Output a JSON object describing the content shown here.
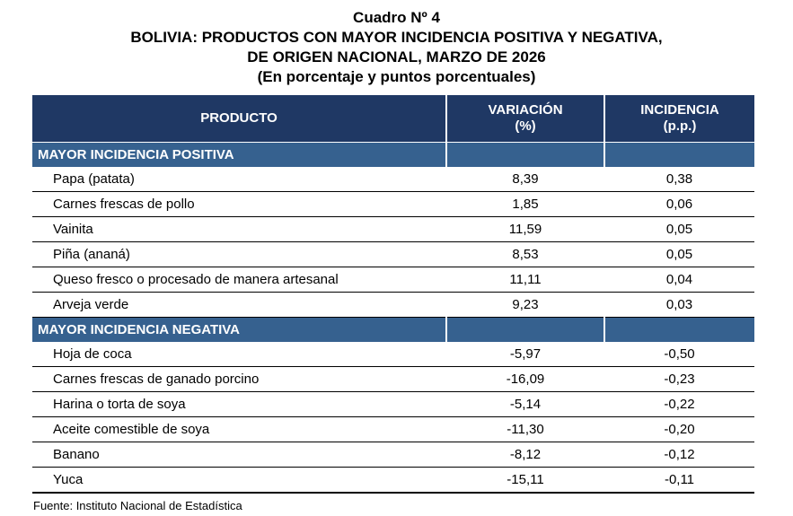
{
  "title": {
    "line1": "Cuadro Nº 4",
    "line2": "BOLIVIA: PRODUCTOS CON MAYOR INCIDENCIA POSITIVA Y NEGATIVA,",
    "line3": "DE ORIGEN NACIONAL, MARZO DE 2026",
    "line4": "(En porcentaje y puntos porcentuales)"
  },
  "table": {
    "columns": [
      {
        "label": "PRODUCTO",
        "sublabel": ""
      },
      {
        "label": "VARIACIÓN",
        "sublabel": "(%)"
      },
      {
        "label": "INCIDENCIA",
        "sublabel": "(p.p.)"
      }
    ],
    "sections": [
      {
        "header": "MAYOR INCIDENCIA POSITIVA",
        "rows": [
          {
            "producto": "Papa (patata)",
            "variacion": "8,39",
            "incidencia": "0,38"
          },
          {
            "producto": "Carnes frescas de pollo",
            "variacion": "1,85",
            "incidencia": "0,06"
          },
          {
            "producto": "Vainita",
            "variacion": "11,59",
            "incidencia": "0,05"
          },
          {
            "producto": "Piña (ananá)",
            "variacion": "8,53",
            "incidencia": "0,05"
          },
          {
            "producto": "Queso fresco o procesado de manera artesanal",
            "variacion": "11,11",
            "incidencia": "0,04"
          },
          {
            "producto": "Arveja verde",
            "variacion": "9,23",
            "incidencia": "0,03"
          }
        ]
      },
      {
        "header": "MAYOR INCIDENCIA NEGATIVA",
        "rows": [
          {
            "producto": "Hoja de coca",
            "variacion": "-5,97",
            "incidencia": "-0,50"
          },
          {
            "producto": "Carnes frescas de ganado porcino",
            "variacion": "-16,09",
            "incidencia": "-0,23"
          },
          {
            "producto": "Harina o torta de soya",
            "variacion": "-5,14",
            "incidencia": "-0,22"
          },
          {
            "producto": "Aceite comestible de soya",
            "variacion": "-11,30",
            "incidencia": "-0,20"
          },
          {
            "producto": "Banano",
            "variacion": "-8,12",
            "incidencia": "-0,12"
          },
          {
            "producto": "Yuca",
            "variacion": "-15,11",
            "incidencia": "-0,11"
          }
        ]
      }
    ]
  },
  "footer": {
    "source": "Fuente: Instituto Nacional de Estadística"
  },
  "colors": {
    "header_bg": "#1F3864",
    "section_bg": "#36618F",
    "header_text": "#FFFFFF",
    "body_text": "#000000",
    "row_border": "#000000"
  },
  "chart_data": {
    "type": "table",
    "title": "Cuadro Nº 4",
    "subtitle": "BOLIVIA: PRODUCTOS CON MAYOR INCIDENCIA POSITIVA Y NEGATIVA, DE ORIGEN NACIONAL, MARZO DE 2026",
    "units_note": "(En porcentaje y puntos porcentuales)",
    "columns": [
      "PRODUCTO",
      "VARIACIÓN (%)",
      "INCIDENCIA (p.p.)"
    ],
    "sections": [
      {
        "name": "MAYOR INCIDENCIA POSITIVA",
        "rows": [
          [
            "Papa (patata)",
            8.39,
            0.38
          ],
          [
            "Carnes frescas de pollo",
            1.85,
            0.06
          ],
          [
            "Vainita",
            11.59,
            0.05
          ],
          [
            "Piña (ananá)",
            8.53,
            0.05
          ],
          [
            "Queso fresco o procesado de manera artesanal",
            11.11,
            0.04
          ],
          [
            "Arveja verde",
            9.23,
            0.03
          ]
        ]
      },
      {
        "name": "MAYOR INCIDENCIA NEGATIVA",
        "rows": [
          [
            "Hoja de coca",
            -5.97,
            -0.5
          ],
          [
            "Carnes frescas de ganado porcino",
            -16.09,
            -0.23
          ],
          [
            "Harina o torta de soya",
            -5.14,
            -0.22
          ],
          [
            "Aceite comestible de soya",
            -11.3,
            -0.2
          ],
          [
            "Banano",
            -8.12,
            -0.12
          ],
          [
            "Yuca",
            -15.11,
            -0.11
          ]
        ]
      }
    ],
    "source": "Fuente: Instituto Nacional de Estadística"
  }
}
